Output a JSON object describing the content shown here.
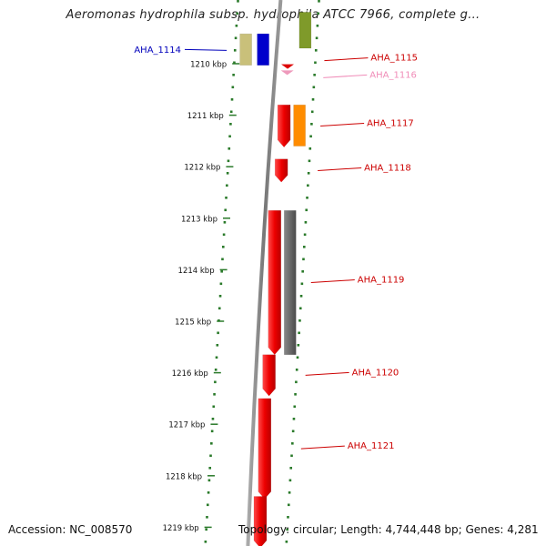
{
  "title": "Aeromonas hydrophila subsp. hydrophila ATCC 7966, complete g...",
  "accession": "Accession: NC_008570",
  "topology": "Topology: circular; Length: 4,744,448 bp; Genes: 4,281",
  "map": {
    "ticks": [
      {
        "label": "1210 kbp",
        "kbp": 1210
      },
      {
        "label": "1211 kbp",
        "kbp": 1211
      },
      {
        "label": "1212 kbp",
        "kbp": 1212
      },
      {
        "label": "1213 kbp",
        "kbp": 1213
      },
      {
        "label": "1214 kbp",
        "kbp": 1214
      },
      {
        "label": "1215 kbp",
        "kbp": 1215
      },
      {
        "label": "1216 kbp",
        "kbp": 1216
      },
      {
        "label": "1217 kbp",
        "kbp": 1217
      },
      {
        "label": "1218 kbp",
        "kbp": 1218
      },
      {
        "label": "1219 kbp",
        "kbp": 1219
      }
    ],
    "genes": [
      {
        "name": "AHA_1114",
        "start_kbp": 1209.42,
        "end_kbp": 1210.03,
        "strand": "-",
        "color": "#0000cc",
        "label_color": "#0000bb",
        "label_side": "left"
      },
      {
        "name": "AHA_1115",
        "start_kbp": 1210.01,
        "end_kbp": 1210.09,
        "strand": "+",
        "color": "#dd0000",
        "label_color": "#cc0000",
        "label_side": "right"
      },
      {
        "name": "AHA_1116",
        "start_kbp": 1210.13,
        "end_kbp": 1210.2,
        "strand": "+",
        "color": "#ee99bb",
        "label_color": "#f08cb8",
        "label_side": "right"
      },
      {
        "name": "AHA_1117",
        "start_kbp": 1210.8,
        "end_kbp": 1211.62,
        "strand": "+",
        "color": "#ee0000",
        "label_color": "#cc0000",
        "label_side": "right"
      },
      {
        "name": "AHA_1118",
        "start_kbp": 1211.85,
        "end_kbp": 1212.3,
        "strand": "+",
        "color": "#ee0000",
        "label_color": "#cc0000",
        "label_side": "right"
      },
      {
        "name": "AHA_1119",
        "start_kbp": 1212.85,
        "end_kbp": 1215.65,
        "strand": "+",
        "color": "#ee0000",
        "label_color": "#cc0000",
        "label_side": "right"
      },
      {
        "name": "AHA_1120",
        "start_kbp": 1215.65,
        "end_kbp": 1216.45,
        "strand": "+",
        "color": "#ee0000",
        "label_color": "#cc0000",
        "label_side": "right"
      },
      {
        "name": "AHA_1121",
        "start_kbp": 1216.5,
        "end_kbp": 1218.45,
        "strand": "+",
        "color": "#ee0000",
        "label_color": "#cc0000",
        "label_side": "right"
      },
      {
        "name": "",
        "start_kbp": 1218.4,
        "end_kbp": 1219.4,
        "strand": "+",
        "color": "#ee0000",
        "label_color": "#cc0000",
        "label_side": "none"
      }
    ],
    "cog_boxes": [
      {
        "start_kbp": 1209.42,
        "end_kbp": 1210.03,
        "side": "outer-left",
        "color": "#c9c07a"
      },
      {
        "start_kbp": 1209.0,
        "end_kbp": 1209.7,
        "side": "outer-right",
        "color": "#7f9a2a"
      },
      {
        "start_kbp": 1210.8,
        "end_kbp": 1211.6,
        "side": "outer-right",
        "color": "#ff8c00"
      },
      {
        "start_kbp": 1212.85,
        "end_kbp": 1215.65,
        "side": "outer-right",
        "color": "#666666"
      }
    ],
    "colors": {
      "backbone": "#888888",
      "ring_dots": "#2a7a2a",
      "tick_labels": "#111111"
    }
  }
}
